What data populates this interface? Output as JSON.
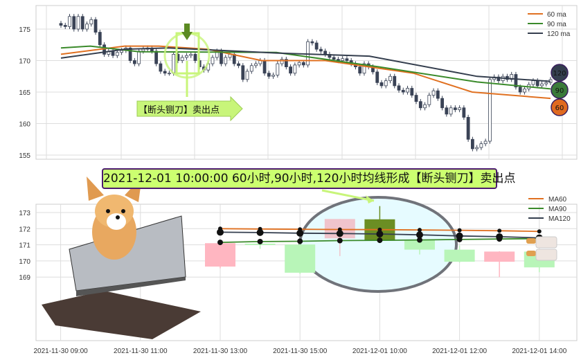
{
  "chart_data": [
    {
      "type": "candlestick",
      "title": "",
      "ylim": [
        154.5,
        178.5
      ],
      "yticks": [
        155,
        160,
        165,
        170,
        175
      ],
      "grid": true,
      "legend_placement": "top-right",
      "legend": [
        "60 ma",
        "90 ma",
        "120 ma"
      ],
      "colors": {
        "candle": "#3a4356",
        "ma60": "#e07020",
        "ma90": "#3a8a2a",
        "ma120": "#343e4e"
      },
      "close": [
        175.6,
        175.4,
        177,
        175,
        177,
        175,
        175.8,
        176.5,
        174.5,
        172.5,
        171,
        171.5,
        170.8,
        171.3,
        171.6,
        172,
        170,
        169.5,
        171.5,
        171.8,
        172,
        171.5,
        169.5,
        168.3,
        168,
        168,
        171,
        170,
        170.5,
        170.8,
        171,
        170,
        169,
        168.5,
        169.5,
        170.5,
        171.5,
        169.5,
        170.5,
        171,
        169.5,
        169.2,
        167,
        168.3,
        169.2,
        169.5,
        170,
        168,
        167.5,
        167.7,
        169.5,
        170.2,
        169,
        168,
        169.3,
        169.7,
        169.3,
        173,
        172.8,
        171.8,
        171.5,
        171,
        170.5,
        170.2,
        170,
        170.3,
        170,
        169.5,
        169,
        168,
        169.5,
        169,
        168.2,
        166.5,
        166,
        166.8,
        167.5,
        166,
        165.3,
        165,
        165.6,
        164.5,
        163.5,
        162.5,
        163,
        164.5,
        165.2,
        164,
        162.5,
        161.5,
        162.5,
        162.2,
        162.5,
        161,
        157.5,
        156,
        156.2,
        156.8,
        157.2,
        167,
        167.4,
        166.8,
        167.5,
        167,
        167.8,
        165.8,
        165,
        165.5,
        166.2,
        166.8,
        166,
        166.3,
        166.5,
        167
      ],
      "ma60": [
        [
          0,
          171
        ],
        [
          0.13,
          172.3
        ],
        [
          0.2,
          172.3
        ],
        [
          0.3,
          171.8
        ],
        [
          0.41,
          170
        ],
        [
          0.54,
          170
        ],
        [
          0.72,
          168
        ],
        [
          0.84,
          165
        ],
        [
          1,
          164
        ]
      ],
      "ma90": [
        [
          0,
          172
        ],
        [
          0.06,
          172.3
        ],
        [
          0.16,
          171.4
        ],
        [
          0.44,
          171.3
        ],
        [
          0.65,
          169
        ],
        [
          0.85,
          166.6
        ],
        [
          1,
          165.5
        ]
      ],
      "ma120": [
        [
          0,
          170.4
        ],
        [
          0.13,
          171.8
        ],
        [
          0.22,
          172
        ],
        [
          0.44,
          171.2
        ],
        [
          0.63,
          170.7
        ],
        [
          0.85,
          167.5
        ],
        [
          1,
          166.7
        ]
      ],
      "annotation": "【断头铡刀】卖出点",
      "end_badges": [
        "120",
        "90",
        "60"
      ]
    },
    {
      "type": "candlestick",
      "title": "2021-12-01 10:00:00 60小时,90小时,120小时均线形成【断头铡刀】卖出点",
      "ylim": [
        168.8,
        173.8
      ],
      "yticks": [
        169,
        170,
        171,
        172,
        173
      ],
      "grid": true,
      "legend_placement": "top-right",
      "legend": [
        "MA60",
        "MA90",
        "MA120"
      ],
      "xtick_labels": [
        "2021-11-30 09:00",
        "2021-11-30 11:00",
        "2021-11-30 13:00",
        "2021-11-30 15:00",
        "2021-12-01 10:00",
        "2021-12-01 12:00",
        "2021-12-01 14:00"
      ],
      "candles": [
        {
          "o": 169.65,
          "c": 171.1,
          "h": 171.1,
          "l": 169.55,
          "color": "#ffb6c1"
        },
        {
          "o": 171.07,
          "c": 171.03,
          "h": 171.1,
          "l": 170.75,
          "color": "#b8f5b8"
        },
        {
          "o": 171.02,
          "c": 169.27,
          "h": 171.1,
          "l": 169.2,
          "color": "#b8f5b8"
        },
        {
          "o": 171.4,
          "c": 172.6,
          "h": 172.6,
          "l": 170.3,
          "color": "#f0c4cc"
        },
        {
          "o": 172.58,
          "c": 171.25,
          "h": 173.4,
          "l": 171.25,
          "color": "#6b8e23"
        },
        {
          "o": 171.3,
          "c": 170.7,
          "h": 171.35,
          "l": 170.4,
          "color": "#b8f5b8"
        },
        {
          "o": 170.7,
          "c": 169.95,
          "h": 170.95,
          "l": 169.9,
          "color": "#b8f5b8"
        },
        {
          "o": 169.95,
          "c": 170.58,
          "h": 170.6,
          "l": 169.0,
          "color": "#ffb6c1"
        },
        {
          "o": 170.58,
          "c": 169.6,
          "h": 170.58,
          "l": 169.3,
          "color": "#b8f5b8"
        }
      ],
      "ma60": [
        172.0,
        171.98,
        171.96,
        171.95,
        171.94,
        171.92,
        171.9,
        171.87,
        171.83
      ],
      "ma90": [
        171.15,
        171.2,
        171.22,
        171.26,
        171.28,
        171.3,
        171.33,
        171.36,
        171.38
      ],
      "ma120": [
        171.78,
        171.76,
        171.72,
        171.7,
        171.67,
        171.62,
        171.55,
        171.5,
        171.43
      ],
      "colors": {
        "ma60": "#e07020",
        "ma90": "#3a8a2a",
        "ma120": "#343e4e",
        "highlight_circle": "#70737a",
        "highlight_fill": "#e6fbff"
      }
    }
  ]
}
